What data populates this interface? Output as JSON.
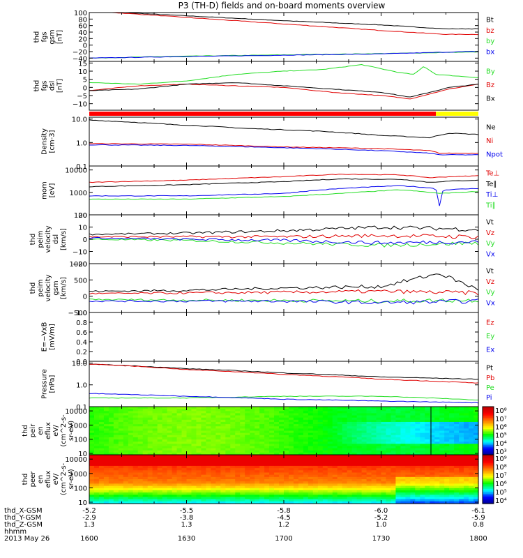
{
  "title": "P3 (TH-D) fields and on-board moments overview",
  "date": "2013 May 26",
  "time_axis": {
    "ticks": [
      "1600",
      "1630",
      "1700",
      "1730",
      "1800"
    ],
    "label": "hhmm"
  },
  "ephemeris": [
    {
      "label": "thd_X-GSM",
      "values": [
        "-5.2",
        "-5.5",
        "-5.8",
        "-6.0",
        "-6.1"
      ]
    },
    {
      "label": "thd_Y-GSM",
      "values": [
        "-2.9",
        "-3.8",
        "-4.5",
        "-5.2",
        "-5.9"
      ]
    },
    {
      "label": "thd_Z-GSM",
      "values": [
        "1.3",
        "1.3",
        "1.2",
        "1.0",
        "0.8"
      ]
    }
  ],
  "colors": {
    "black": "#000000",
    "red": "#e00000",
    "green": "#22dd22",
    "blue": "#0000ee",
    "yellow": "#ffff00"
  },
  "chart_data": [
    {
      "type": "line",
      "id": "fgs",
      "ylabel": [
        "thd",
        "fgs",
        "gsm",
        "[nT]"
      ],
      "ylim": [
        -50,
        100
      ],
      "yticks": [
        100,
        80,
        60,
        40,
        20,
        0,
        -20,
        -40
      ],
      "ytick_labels": [
        "100",
        "80",
        "60",
        "40",
        "20",
        "0",
        "−20",
        "−40"
      ],
      "series": [
        {
          "name": "Bt",
          "color": "black",
          "x": [
            0,
            0.5,
            1,
            1.5,
            1.83,
            2
          ],
          "y": [
            105,
            90,
            75,
            62,
            50,
            50
          ]
        },
        {
          "name": "bz",
          "color": "red",
          "x": [
            0,
            0.5,
            1,
            1.5,
            1.83,
            2
          ],
          "y": [
            105,
            85,
            65,
            45,
            33,
            33
          ]
        },
        {
          "name": "by",
          "color": "green",
          "x": [
            0,
            0.5,
            1,
            1.5,
            2
          ],
          "y": [
            -40,
            -34,
            -30,
            -26,
            -21
          ]
        },
        {
          "name": "bx",
          "color": "blue",
          "x": [
            0,
            0.5,
            1,
            1.5,
            2
          ],
          "y": [
            -40,
            -35,
            -31,
            -27,
            -19
          ]
        }
      ]
    },
    {
      "type": "line",
      "id": "fgs-dsl",
      "ylabel": [
        "thd",
        "fgs",
        "dsl",
        "[nT]"
      ],
      "ylim": [
        -14,
        16
      ],
      "yticks": [
        15,
        10,
        5,
        0,
        -5,
        -10
      ],
      "ytick_labels": [
        "15",
        "10",
        "5",
        "0",
        "−5",
        "−10"
      ],
      "legend_labels": [
        "By",
        "Bz",
        "Bx"
      ],
      "series": [
        {
          "name": "By",
          "color": "green",
          "x": [
            0,
            0.25,
            0.5,
            0.75,
            1,
            1.2,
            1.4,
            1.6,
            1.67,
            1.72,
            1.78,
            2
          ],
          "y": [
            3,
            2,
            4,
            8,
            10,
            11,
            14,
            9,
            8,
            13,
            8,
            6
          ]
        },
        {
          "name": "Bz",
          "color": "red",
          "x": [
            0,
            0.25,
            0.5,
            0.75,
            1,
            1.25,
            1.5,
            1.65,
            1.75,
            1.85,
            2
          ],
          "y": [
            -2,
            1,
            2,
            1,
            0,
            -3,
            -5,
            -7,
            -4,
            -1,
            2
          ]
        },
        {
          "name": "Bx",
          "color": "black",
          "x": [
            0,
            0.25,
            0.5,
            0.75,
            1,
            1.25,
            1.5,
            1.65,
            1.75,
            1.85,
            2
          ],
          "y": [
            -2,
            -1,
            2,
            3,
            1,
            -1,
            -3,
            -6,
            -3,
            0,
            2
          ]
        }
      ]
    },
    {
      "type": "line",
      "id": "density",
      "scale": "log",
      "ylabel": [
        "Density",
        "[cm-3]"
      ],
      "ylim": [
        0.1,
        12
      ],
      "yticks": [
        10,
        1,
        0.1
      ],
      "ytick_labels": [
        "10.0",
        "1.0",
        "0.1"
      ],
      "series": [
        {
          "name": "Ne",
          "color": "black",
          "x": [
            0,
            0.4,
            0.8,
            1.2,
            1.5,
            1.75,
            1.85,
            2
          ],
          "y": [
            9,
            6,
            4,
            3,
            2,
            1.6,
            2.5,
            2.2
          ]
        },
        {
          "name": "Ni",
          "color": "red",
          "x": [
            0,
            0.5,
            1,
            1.5,
            1.75,
            1.8,
            2
          ],
          "y": [
            0.9,
            0.85,
            0.65,
            0.55,
            0.45,
            0.35,
            0.35
          ]
        },
        {
          "name": "Npot",
          "color": "blue",
          "x": [
            0,
            0.5,
            1,
            1.5,
            1.75,
            1.8,
            2
          ],
          "y": [
            0.8,
            0.75,
            0.6,
            0.45,
            0.35,
            0.3,
            0.3
          ]
        }
      ]
    },
    {
      "type": "line",
      "id": "temperature",
      "scale": "log",
      "ylabel": [
        "mom",
        "[eV]"
      ],
      "ylim": [
        100,
        15000
      ],
      "yticks": [
        10000,
        1000,
        100
      ],
      "ytick_labels": [
        "10000",
        "1000",
        "100"
      ],
      "series": [
        {
          "name": "Te⊥",
          "color": "red",
          "x": [
            0,
            0.5,
            1,
            1.3,
            1.6,
            1.75,
            1.85,
            2
          ],
          "y": [
            2800,
            3500,
            5000,
            6500,
            6000,
            4500,
            5000,
            5500
          ]
        },
        {
          "name": "Te∥",
          "color": "black",
          "x": [
            0,
            0.5,
            1,
            1.3,
            1.6,
            1.75,
            1.85,
            2
          ],
          "y": [
            1800,
            2200,
            3000,
            4000,
            3800,
            2800,
            3200,
            3500
          ]
        },
        {
          "name": "Ti⊥",
          "color": "blue",
          "x": [
            0,
            0.5,
            1,
            1.3,
            1.6,
            1.78,
            1.8,
            1.82,
            2
          ],
          "y": [
            700,
            700,
            900,
            1500,
            2000,
            1500,
            250,
            1300,
            1500
          ]
        },
        {
          "name": "Ti∥",
          "color": "green",
          "x": [
            0,
            0.5,
            1,
            1.3,
            1.6,
            1.8,
            2
          ],
          "y": [
            500,
            500,
            650,
            900,
            1300,
            900,
            1100
          ]
        }
      ]
    },
    {
      "type": "line",
      "id": "velocity-dsl",
      "ylabel": [
        "thd",
        "peim",
        "velocity",
        "dsl",
        "[km/s]"
      ],
      "ylim": [
        -20,
        20
      ],
      "yticks": [
        20,
        10,
        0,
        -10,
        -20
      ],
      "ytick_labels": [
        "20",
        "10",
        "0",
        "−10",
        "−20"
      ],
      "series": [
        {
          "name": "Vt",
          "color": "black",
          "x": [
            0,
            0.5,
            1,
            1.5,
            2
          ],
          "y": [
            4,
            5,
            7,
            10,
            8
          ]
        },
        {
          "name": "Vz",
          "color": "red",
          "x": [
            0,
            0.5,
            1,
            1.5,
            2
          ],
          "y": [
            2,
            2,
            2,
            3,
            2
          ]
        },
        {
          "name": "Vy",
          "color": "green",
          "x": [
            0,
            0.5,
            1,
            1.5,
            2
          ],
          "y": [
            0,
            -1,
            -3,
            -5,
            -3
          ]
        },
        {
          "name": "Vx",
          "color": "blue",
          "x": [
            0,
            0.5,
            1,
            1.5,
            2
          ],
          "y": [
            1,
            0,
            -1,
            -3,
            -2
          ]
        }
      ]
    },
    {
      "type": "line",
      "id": "velocity-gsm",
      "ylabel": [
        "thd",
        "peim",
        "velocity",
        "gsm",
        "[km/s]"
      ],
      "ylim": [
        -500,
        1000
      ],
      "yticks": [
        1000,
        500,
        0,
        -500
      ],
      "ytick_labels": [
        "1000",
        "500",
        "0",
        "−500"
      ],
      "series": [
        {
          "name": "Vt",
          "color": "black",
          "x": [
            0,
            0.5,
            1,
            1.5,
            1.8,
            2
          ],
          "y": [
            150,
            180,
            250,
            300,
            700,
            200
          ]
        },
        {
          "name": "Vz",
          "color": "red",
          "x": [
            0,
            0.5,
            1,
            1.5,
            2
          ],
          "y": [
            80,
            100,
            120,
            150,
            100
          ]
        },
        {
          "name": "Vy",
          "color": "green",
          "x": [
            0,
            0.5,
            1,
            1.5,
            2
          ],
          "y": [
            -100,
            -120,
            -130,
            -150,
            -120
          ]
        },
        {
          "name": "Vx",
          "color": "blue",
          "x": [
            0,
            0.5,
            1,
            1.5,
            2
          ],
          "y": [
            -150,
            -150,
            -150,
            -200,
            -150
          ]
        }
      ]
    },
    {
      "type": "line",
      "id": "efield",
      "ylabel": [
        "E=−VxB",
        "[mV/m]"
      ],
      "ylim": [
        0,
        1
      ],
      "yticks": [
        1,
        0.8,
        0.6,
        0.4,
        0.2,
        0
      ],
      "ytick_labels": [
        "1.0",
        "0.8",
        "0.6",
        "0.4",
        "0.2",
        "0.0"
      ],
      "series": [
        {
          "name": "Ez",
          "color": "red",
          "x": [],
          "y": []
        },
        {
          "name": "Ey",
          "color": "green",
          "x": [],
          "y": []
        },
        {
          "name": "Ex",
          "color": "blue",
          "x": [],
          "y": []
        }
      ]
    },
    {
      "type": "line",
      "id": "pressure",
      "scale": "log",
      "ylabel": [
        "Pressure",
        "[nPa]"
      ],
      "ylim": [
        0.1,
        12
      ],
      "yticks": [
        10,
        1,
        0.1
      ],
      "ytick_labels": [
        "10.0",
        "1.0",
        "0.1"
      ],
      "series": [
        {
          "name": "Pt",
          "color": "black",
          "x": [
            0,
            0.5,
            1,
            1.5,
            2
          ],
          "y": [
            9,
            5.5,
            3.5,
            2.3,
            1.8
          ]
        },
        {
          "name": "Pb",
          "color": "red",
          "x": [
            0,
            0.5,
            1,
            1.5,
            2
          ],
          "y": [
            9,
            5,
            3,
            1.8,
            1.2
          ]
        },
        {
          "name": "Pe",
          "color": "green",
          "x": [
            0,
            0.5,
            1,
            1.5,
            2
          ],
          "y": [
            0.25,
            0.25,
            0.3,
            0.3,
            0.2
          ]
        },
        {
          "name": "Pi",
          "color": "blue",
          "x": [
            0,
            0.5,
            1,
            1.5,
            2
          ],
          "y": [
            0.4,
            0.3,
            0.22,
            0.18,
            0.15
          ]
        }
      ]
    },
    {
      "type": "heatmap",
      "id": "ion-efflux",
      "scale": "log",
      "ylabel": [
        "thd",
        "peir",
        "en",
        "eflux",
        "eV/",
        "(cm^2-s-",
        "sr-eV)"
      ],
      "ylim": [
        8,
        20000
      ],
      "yticks": [
        10000,
        1000,
        100,
        10
      ],
      "ytick_labels": [
        "10000",
        "1000",
        "100",
        "10"
      ],
      "colorbar": {
        "ticks": [
          "10⁸",
          "10⁷",
          "10⁶",
          "10⁵",
          "10⁴",
          "10³"
        ]
      }
    },
    {
      "type": "heatmap",
      "id": "electron-efflux",
      "scale": "log",
      "ylabel": [
        "thd",
        "peer",
        "en",
        "eflux",
        "eV/",
        "(cm^2-s-",
        "sr-eV)"
      ],
      "ylim": [
        8,
        20000
      ],
      "yticks": [
        10000,
        1000,
        100,
        10
      ],
      "ytick_labels": [
        "10000",
        "1000",
        "100",
        "10"
      ],
      "colorbar": {
        "ticks": [
          "10⁹",
          "10⁸",
          "10⁷",
          "10⁶",
          "10⁵",
          "10⁴"
        ]
      }
    }
  ]
}
